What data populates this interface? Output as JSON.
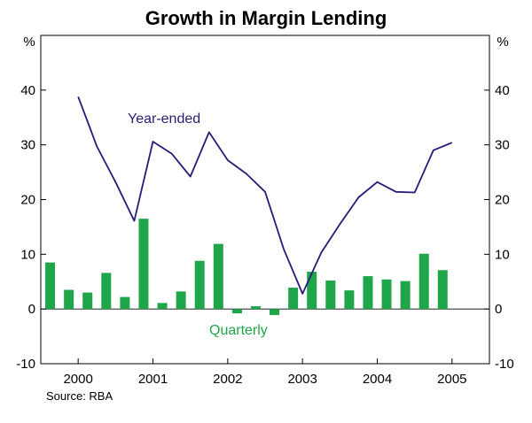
{
  "chart_data": {
    "type": "bar",
    "title": "Growth in Margin Lending",
    "unit_left": "%",
    "unit_right": "%",
    "ylim": [
      -10,
      50
    ],
    "yticks": [
      -10,
      0,
      10,
      20,
      30,
      40
    ],
    "years": [
      "2000",
      "2001",
      "2002",
      "2003",
      "2004",
      "2005"
    ],
    "x_start": 1999.5,
    "x_end": 2005.5,
    "series": [
      {
        "name": "Quarterly",
        "kind": "bar",
        "color": "#1fa64a",
        "x": [
          1999.625,
          1999.875,
          2000.125,
          2000.375,
          2000.625,
          2000.875,
          2001.125,
          2001.375,
          2001.625,
          2001.875,
          2002.125,
          2002.375,
          2002.625,
          2002.875,
          2003.125,
          2003.375,
          2003.625,
          2003.875,
          2004.125,
          2004.375,
          2004.625,
          2004.875
        ],
        "values": [
          8.5,
          3.5,
          3.0,
          6.6,
          2.2,
          16.5,
          1.1,
          3.2,
          8.8,
          11.9,
          -0.8,
          0.5,
          -1.1,
          3.9,
          6.8,
          5.2,
          3.4,
          6.0,
          5.4,
          5.1,
          10.1,
          7.1
        ]
      },
      {
        "name": "Year-ended",
        "kind": "line",
        "color": "#2b1a78",
        "x": [
          2000.0,
          2000.25,
          2000.5,
          2000.75,
          2001.0,
          2001.25,
          2001.5,
          2001.75,
          2002.0,
          2002.25,
          2002.5,
          2002.75,
          2003.0,
          2003.25,
          2003.5,
          2003.75,
          2004.0,
          2004.25,
          2004.5,
          2004.75,
          2005.0
        ],
        "values": [
          38.8,
          29.7,
          23.2,
          16.1,
          30.6,
          28.4,
          24.2,
          32.3,
          27.2,
          24.7,
          21.4,
          10.9,
          2.8,
          10.3,
          15.5,
          20.4,
          23.2,
          21.4,
          21.3,
          29.0,
          30.4
        ]
      }
    ],
    "labels": {
      "year_ended": "Year-ended",
      "quarterly": "Quarterly"
    },
    "source": "Source: RBA"
  }
}
